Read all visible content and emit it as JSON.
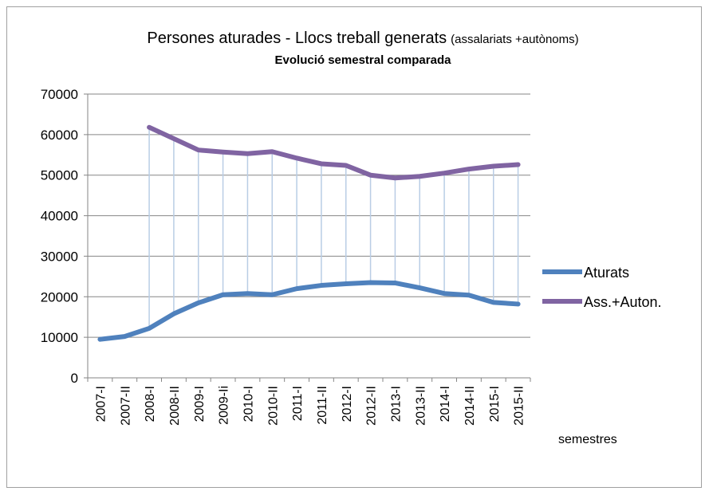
{
  "chart_data": {
    "type": "line",
    "title": "Persones aturades - Llocs treball generats",
    "title_note": "(assalariats +autònoms)",
    "subtitle": "Evolució semestral comparada",
    "x_label": "semestres",
    "categories": [
      "2007-I",
      "2007-II",
      "2008-I",
      "2008-II",
      "2009-I",
      "2009-Ii",
      "2010-I",
      "2010-II",
      "2011-I",
      "2011-II",
      "2012-I",
      "2012-II",
      "2013-I",
      "2013-II",
      "2014-I",
      "2014-II",
      "2015-I",
      "2015-II"
    ],
    "series": [
      {
        "name": "Aturats",
        "color": "#4f81bd",
        "values": [
          9500,
          10200,
          12200,
          15800,
          18500,
          20500,
          20800,
          20500,
          22000,
          22800,
          23200,
          23500,
          23400,
          22200,
          20800,
          20400,
          18600,
          18200
        ]
      },
      {
        "name": "Ass.+Auton.",
        "color": "#8064a2",
        "values": [
          null,
          null,
          61800,
          59000,
          56200,
          55700,
          55300,
          55800,
          54200,
          52800,
          52400,
          50000,
          49300,
          49700,
          50500,
          51500,
          52200,
          52600
        ]
      }
    ],
    "ylim": [
      0,
      70000
    ],
    "yticks": [
      0,
      10000,
      20000,
      30000,
      40000,
      50000,
      60000,
      70000
    ],
    "grid": true,
    "drop_lines": true,
    "legend": "right"
  }
}
